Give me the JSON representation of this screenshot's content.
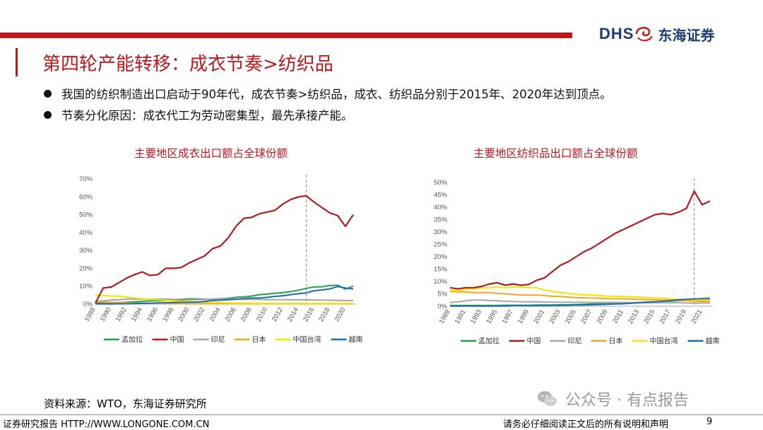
{
  "header": {
    "logo_en": "DHS",
    "logo_cn": "东海证券",
    "title": "第四轮产能转移：成衣节奏>纺织品"
  },
  "bullets": [
    "我国的纺织制造出口启动于90年代，成衣节奏>纺织品，成衣、纺织品分别于2015年、2020年达到顶点。",
    "节奏分化原因：成衣代工为劳动密集型，最先承接产能。"
  ],
  "colors": {
    "bangladesh": "#1aa34a",
    "china": "#b01c20",
    "indonesia": "#a6a6a6",
    "japan": "#f6a623",
    "taiwan": "#f2e600",
    "vietnam": "#1f6bb0"
  },
  "chart_data": [
    {
      "type": "line",
      "title": "主要地区成衣出口额占全球份额",
      "x": [
        1988,
        1989,
        1990,
        1991,
        1992,
        1993,
        1994,
        1995,
        1996,
        1997,
        1998,
        1999,
        2000,
        2001,
        2002,
        2003,
        2004,
        2005,
        2006,
        2007,
        2008,
        2009,
        2010,
        2011,
        2012,
        2013,
        2014,
        2015,
        2016,
        2017,
        2018,
        2019,
        2020,
        2021
      ],
      "x_tick_labels": [
        "1988",
        "1990",
        "1992",
        "1994",
        "1996",
        "1998",
        "2000",
        "2002",
        "2004",
        "2006",
        "2008",
        "2010",
        "2012",
        "2014",
        "2016",
        "2018",
        "2020"
      ],
      "y_tick_labels": [
        "0%",
        "10%",
        "20%",
        "30%",
        "40%",
        "50%",
        "60%",
        "70%"
      ],
      "ylim": [
        0,
        70
      ],
      "vline_x": 2015,
      "legend_position": "bottom",
      "series": [
        {
          "name": "孟加拉",
          "key": "bangladesh",
          "values": [
            0.5,
            0.6,
            0.7,
            0.9,
            1.1,
            1.3,
            1.5,
            1.8,
            1.9,
            2.1,
            2.3,
            2.4,
            2.6,
            2.7,
            2.7,
            2.8,
            3.0,
            3.3,
            3.8,
            4.0,
            4.5,
            5.3,
            5.6,
            6.0,
            6.4,
            7.0,
            7.8,
            8.8,
            9.6,
            9.7,
            10.4,
            10.6,
            8.4,
            10.1
          ]
        },
        {
          "name": "中国",
          "key": "china",
          "values": [
            0.5,
            9.0,
            9.5,
            12.0,
            14.5,
            16.5,
            18.0,
            16.0,
            16.5,
            20.0,
            20.0,
            20.5,
            23.0,
            25.0,
            27.0,
            31.0,
            32.5,
            37.0,
            43.5,
            48.0,
            48.5,
            50.5,
            51.5,
            52.5,
            56.0,
            58.5,
            60.0,
            60.5,
            57.0,
            54.0,
            51.0,
            49.5,
            43.5,
            50.0
          ]
        },
        {
          "name": "印尼",
          "key": "indonesia",
          "values": [
            1.5,
            1.8,
            2.3,
            2.5,
            2.8,
            2.8,
            2.9,
            2.8,
            2.8,
            2.8,
            2.6,
            2.8,
            3.2,
            3.1,
            2.8,
            2.8,
            2.9,
            2.8,
            2.8,
            2.7,
            2.7,
            2.6,
            2.5,
            2.5,
            2.5,
            2.4,
            2.4,
            2.4,
            2.3,
            2.2,
            2.2,
            2.1,
            2.0,
            2.0
          ]
        },
        {
          "name": "日本",
          "key": "japan",
          "values": [
            1.5,
            1.2,
            1.0,
            0.9,
            0.8,
            0.6,
            0.5,
            0.5,
            0.4,
            0.4,
            0.3,
            0.3,
            0.3,
            0.3,
            0.3,
            0.2,
            0.2,
            0.2,
            0.2,
            0.2,
            0.2,
            0.2,
            0.2,
            0.2,
            0.2,
            0.2,
            0.2,
            0.2,
            0.2,
            0.2,
            0.2,
            0.2,
            0.2,
            0.2
          ]
        },
        {
          "name": "中国台湾",
          "key": "taiwan",
          "values": [
            5.0,
            4.8,
            4.5,
            4.5,
            4.0,
            3.5,
            3.0,
            2.8,
            2.4,
            2.1,
            1.8,
            1.6,
            1.5,
            1.2,
            1.0,
            0.9,
            0.8,
            0.7,
            0.6,
            0.6,
            0.5,
            0.5,
            0.5,
            0.4,
            0.4,
            0.4,
            0.4,
            0.4,
            0.4,
            0.4,
            0.4,
            0.4,
            0.4,
            0.4
          ]
        },
        {
          "name": "越南",
          "key": "vietnam",
          "values": [
            0.1,
            0.1,
            0.1,
            0.2,
            0.2,
            0.3,
            0.4,
            0.5,
            0.7,
            0.8,
            0.9,
            1.0,
            1.1,
            1.2,
            1.5,
            2.0,
            2.2,
            2.4,
            2.7,
            3.1,
            3.4,
            3.4,
            3.8,
            4.3,
            4.7,
            5.3,
            5.8,
            6.3,
            7.5,
            7.9,
            8.5,
            9.8,
            9.0,
            8.5
          ]
        }
      ]
    },
    {
      "type": "line",
      "title": "主要地区纺织品出口额占全球份额",
      "x": [
        1989,
        1990,
        1991,
        1992,
        1993,
        1994,
        1995,
        1996,
        1997,
        1998,
        1999,
        2000,
        2001,
        2002,
        2003,
        2004,
        2005,
        2006,
        2007,
        2008,
        2009,
        2010,
        2011,
        2012,
        2013,
        2014,
        2015,
        2016,
        2017,
        2018,
        2019,
        2020,
        2021,
        2022
      ],
      "x_tick_labels": [
        "1989",
        "1991",
        "1993",
        "1995",
        "1997",
        "1999",
        "2001",
        "2003",
        "2005",
        "2007",
        "2009",
        "2011",
        "2013",
        "2015",
        "2017",
        "2019",
        "2021"
      ],
      "y_tick_labels": [
        "0%",
        "5%",
        "10%",
        "15%",
        "20%",
        "25%",
        "30%",
        "35%",
        "40%",
        "45%",
        "50%"
      ],
      "ylim": [
        0,
        50
      ],
      "vline_x": 2020,
      "legend_position": "bottom",
      "series": [
        {
          "name": "孟加拉",
          "key": "bangladesh",
          "values": [
            0.3,
            0.3,
            0.3,
            0.3,
            0.3,
            0.3,
            0.3,
            0.4,
            0.4,
            0.4,
            0.4,
            0.5,
            0.5,
            0.5,
            0.6,
            0.6,
            0.7,
            0.8,
            0.9,
            1.0,
            1.1,
            1.2,
            1.3,
            1.4,
            1.5,
            1.7,
            1.8,
            2.0,
            2.1,
            2.2,
            2.4,
            2.5,
            2.6,
            2.6
          ]
        },
        {
          "name": "中国",
          "key": "china",
          "values": [
            7.5,
            7.0,
            7.5,
            7.5,
            8.0,
            9.0,
            9.5,
            8.5,
            9.0,
            8.5,
            8.8,
            10.5,
            11.5,
            14.0,
            16.5,
            18.0,
            20.0,
            22.0,
            23.5,
            25.5,
            27.5,
            29.5,
            31.0,
            32.5,
            34.0,
            35.5,
            37.0,
            37.5,
            37.0,
            38.0,
            39.5,
            46.5,
            41.0,
            42.5
          ]
        },
        {
          "name": "印尼",
          "key": "indonesia",
          "values": [
            1.5,
            1.8,
            2.2,
            2.5,
            2.5,
            2.3,
            2.2,
            2.0,
            1.9,
            1.8,
            1.8,
            1.8,
            1.7,
            1.7,
            1.6,
            1.6,
            1.6,
            1.6,
            1.5,
            1.5,
            1.5,
            1.5,
            1.5,
            1.5,
            1.5,
            1.4,
            1.4,
            1.4,
            1.4,
            1.4,
            1.3,
            1.2,
            1.3,
            1.3
          ]
        },
        {
          "name": "日本",
          "key": "japan",
          "values": [
            6.0,
            5.8,
            5.8,
            5.5,
            5.5,
            5.5,
            5.2,
            5.0,
            4.8,
            4.5,
            4.5,
            4.5,
            4.3,
            4.0,
            3.9,
            3.7,
            3.5,
            3.4,
            3.3,
            3.2,
            3.1,
            3.0,
            3.0,
            2.9,
            2.8,
            2.7,
            2.6,
            2.5,
            2.4,
            2.3,
            2.2,
            2.0,
            2.0,
            2.0
          ]
        },
        {
          "name": "中国台湾",
          "key": "taiwan",
          "values": [
            6.5,
            6.2,
            6.8,
            7.0,
            7.3,
            7.5,
            7.8,
            7.5,
            7.8,
            7.8,
            7.6,
            7.5,
            6.5,
            6.0,
            5.5,
            5.2,
            4.8,
            4.6,
            4.5,
            4.3,
            4.1,
            4.0,
            3.9,
            3.8,
            3.7,
            3.5,
            3.3,
            3.2,
            3.0,
            2.8,
            2.7,
            2.4,
            2.6,
            2.5
          ]
        },
        {
          "name": "越南",
          "key": "vietnam",
          "values": [
            0.1,
            0.1,
            0.1,
            0.1,
            0.1,
            0.1,
            0.1,
            0.1,
            0.2,
            0.2,
            0.2,
            0.2,
            0.2,
            0.3,
            0.3,
            0.4,
            0.5,
            0.5,
            0.6,
            0.7,
            0.8,
            0.9,
            1.0,
            1.2,
            1.4,
            1.6,
            1.8,
            2.0,
            2.3,
            2.6,
            2.8,
            2.9,
            3.1,
            3.2
          ]
        }
      ]
    }
  ],
  "source": "资料来源：WTO，东海证券研究所",
  "footer": {
    "left": "证券研究报告 HTTP://WWW.LONGONE.COM.CN",
    "right": "请务必仔细阅读正文后的所有说明和声明",
    "page": "9"
  },
  "watermark": "公众号 · 有点报告"
}
